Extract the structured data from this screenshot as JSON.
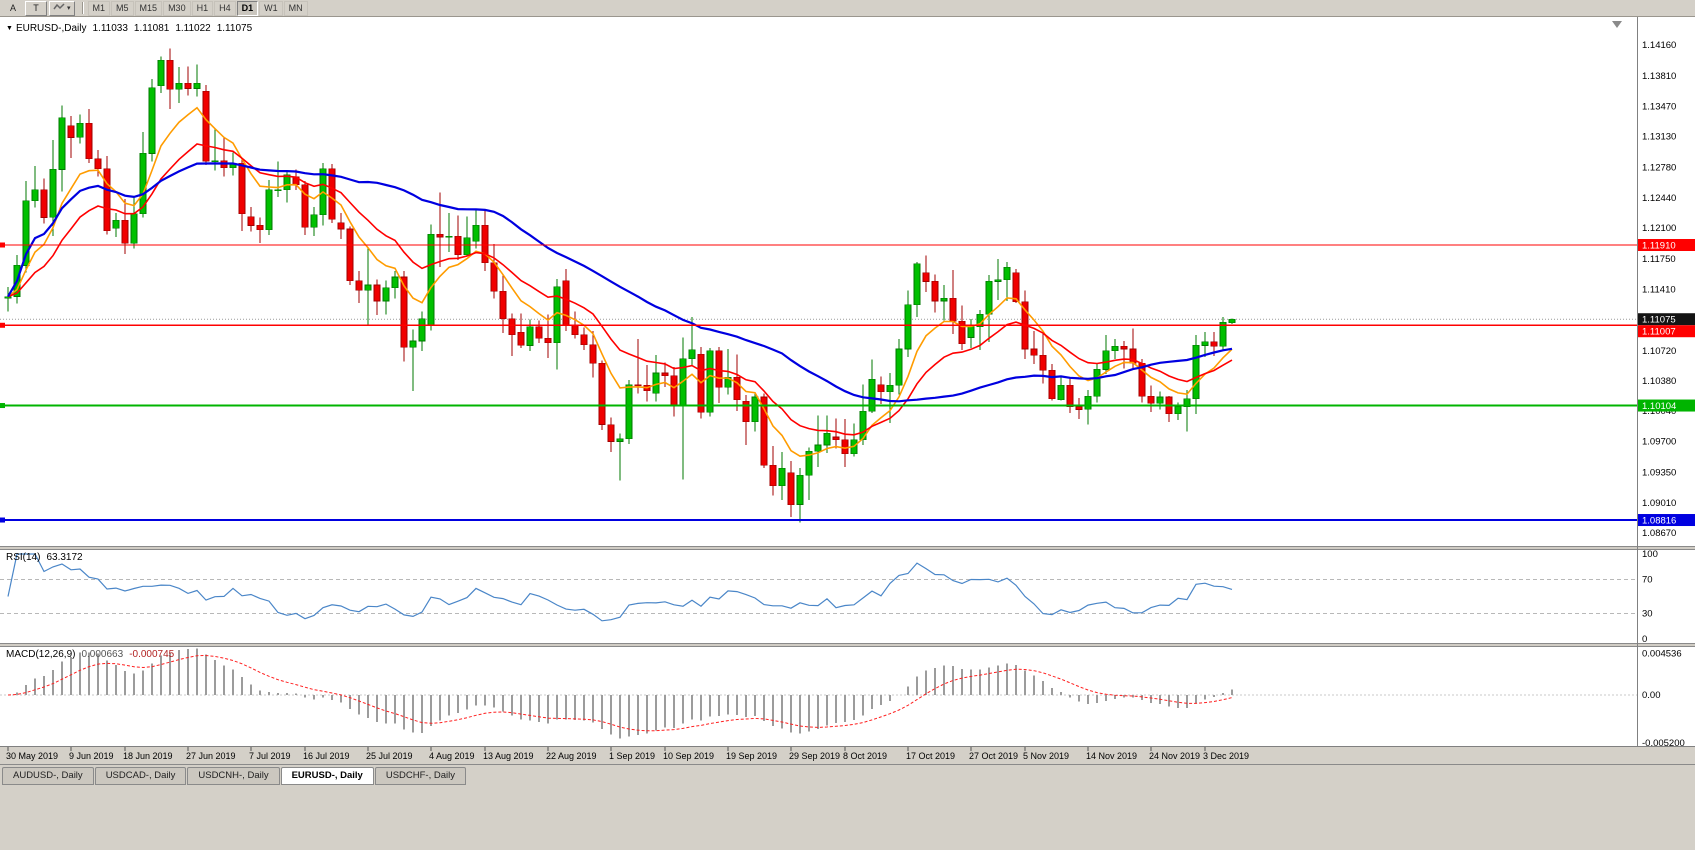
{
  "toolbar": {
    "buttons": [
      {
        "label": "A"
      },
      {
        "label": "T"
      }
    ],
    "timeframes": [
      "M1",
      "M5",
      "M15",
      "M30",
      "H1",
      "H4",
      "D1",
      "W1",
      "MN"
    ],
    "active_timeframe": "D1"
  },
  "chart": {
    "quote": {
      "title": "EURUSD-,Daily",
      "open": "1.11033",
      "high": "1.11081",
      "low": "1.11022",
      "close": "1.11075"
    },
    "price_axis_ticks": [
      "1.14160",
      "1.13810",
      "1.13470",
      "1.13130",
      "1.12780",
      "1.12440",
      "1.12100",
      "1.11750",
      "1.11410",
      "1.10720",
      "1.10380",
      "1.10040",
      "1.09700",
      "1.09350",
      "1.09010",
      "1.08670"
    ],
    "current_price": {
      "label": "1.11075",
      "value": 1.11075,
      "bg": "#141414"
    },
    "levels": [
      {
        "label": "1.11910",
        "value": 1.1191,
        "color": "#ff0000",
        "width": 1.4
      },
      {
        "label": "1.11007",
        "value": 1.11007,
        "color": "#ff0000",
        "width": 1.4
      },
      {
        "label": "1.10104",
        "value": 1.10104,
        "color": "#00b400",
        "width": 2
      },
      {
        "label": "1.08816",
        "value": 1.08816,
        "color": "#0000e0",
        "width": 2.4
      }
    ],
    "time_labels": [
      {
        "text": "30 May 2019",
        "i": 0
      },
      {
        "text": "9 Jun 2019",
        "i": 7
      },
      {
        "text": "18 Jun 2019",
        "i": 13
      },
      {
        "text": "27 Jun 2019",
        "i": 20
      },
      {
        "text": "7 Jul 2019",
        "i": 27
      },
      {
        "text": "16 Jul 2019",
        "i": 33
      },
      {
        "text": "25 Jul 2019",
        "i": 40
      },
      {
        "text": "4 Aug 2019",
        "i": 47
      },
      {
        "text": "13 Aug 2019",
        "i": 53
      },
      {
        "text": "22 Aug 2019",
        "i": 60
      },
      {
        "text": "1 Sep 2019",
        "i": 67
      },
      {
        "text": "10 Sep 2019",
        "i": 73
      },
      {
        "text": "19 Sep 2019",
        "i": 80
      },
      {
        "text": "29 Sep 2019",
        "i": 87
      },
      {
        "text": "8 Oct 2019",
        "i": 93
      },
      {
        "text": "17 Oct 2019",
        "i": 100
      },
      {
        "text": "27 Oct 2019",
        "i": 107
      },
      {
        "text": "5 Nov 2019",
        "i": 113
      },
      {
        "text": "14 Nov 2019",
        "i": 120
      },
      {
        "text": "24 Nov 2019",
        "i": 127
      },
      {
        "text": "3 Dec 2019",
        "i": 133
      }
    ]
  },
  "rsi": {
    "name": "RSI(14)",
    "value": "63.3172",
    "period": 14,
    "color": "#4a86c8",
    "levels": [
      70,
      30
    ],
    "scale": [
      {
        "label": "100",
        "value": 100
      },
      {
        "label": "70",
        "value": 70
      },
      {
        "label": "30",
        "value": 30
      },
      {
        "label": "0",
        "value": 0
      }
    ]
  },
  "macd": {
    "name": "MACD(12,26,9)",
    "value_main": "0.000663",
    "value_signal": "-0.000745",
    "fast": 12,
    "slow": 26,
    "signal": 9,
    "scale": [
      {
        "label": "0.004536",
        "value": 0.004536
      },
      {
        "label": "0.00",
        "value": 0
      },
      {
        "label": "-0.005200",
        "value": -0.0052
      }
    ]
  },
  "tabs": [
    {
      "label": "AUDUSD-, Daily",
      "active": false
    },
    {
      "label": "USDCAD-, Daily",
      "active": false
    },
    {
      "label": "USDCNH-, Daily",
      "active": false
    },
    {
      "label": "EURUSD-, Daily",
      "active": true
    },
    {
      "label": "USDCHF-, Daily",
      "active": false
    }
  ],
  "chart_data": {
    "type": "candlestick",
    "symbol": "EURUSD-",
    "timeframe": "Daily",
    "title": "EURUSD-,Daily",
    "bull_color": "#00c000",
    "bull_border": "#007800",
    "bear_color": "#f00000",
    "bear_border": "#a00000",
    "y_axis_range": [
      1.0867,
      1.1416
    ],
    "ma_overlays": [
      {
        "period": 8,
        "method": "ema",
        "color": "#ff9c00",
        "width": 1.6
      },
      {
        "period": 17,
        "method": "ema",
        "color": "#ff0000",
        "width": 1.6
      },
      {
        "period": 40,
        "method": "sma",
        "color": "#0000e0",
        "width": 2.2
      }
    ],
    "ohlc": [
      [
        1.1131,
        1.1144,
        1.1116,
        1.1133
      ],
      [
        1.1133,
        1.118,
        1.1125,
        1.1168
      ],
      [
        1.1168,
        1.1263,
        1.116,
        1.1241
      ],
      [
        1.1241,
        1.128,
        1.1233,
        1.1253
      ],
      [
        1.1253,
        1.1266,
        1.1215,
        1.1222
      ],
      [
        1.1222,
        1.1309,
        1.1201,
        1.1276
      ],
      [
        1.1276,
        1.1348,
        1.1251,
        1.1334
      ],
      [
        1.1325,
        1.1336,
        1.1289,
        1.1312
      ],
      [
        1.1312,
        1.1338,
        1.1305,
        1.1328
      ],
      [
        1.1328,
        1.1344,
        1.1283,
        1.1288
      ],
      [
        1.1288,
        1.1298,
        1.1268,
        1.1277
      ],
      [
        1.1277,
        1.1291,
        1.1203,
        1.1207
      ],
      [
        1.121,
        1.1227,
        1.12,
        1.1219
      ],
      [
        1.1219,
        1.1243,
        1.1181,
        1.1193
      ],
      [
        1.1193,
        1.1245,
        1.1187,
        1.1226
      ],
      [
        1.1226,
        1.1318,
        1.1222,
        1.1294
      ],
      [
        1.1294,
        1.1378,
        1.1285,
        1.1368
      ],
      [
        1.137,
        1.1403,
        1.1362,
        1.1399
      ],
      [
        1.1399,
        1.1412,
        1.1344,
        1.1366
      ],
      [
        1.1366,
        1.1391,
        1.1351,
        1.1373
      ],
      [
        1.1373,
        1.1392,
        1.1359,
        1.1367
      ],
      [
        1.1367,
        1.1394,
        1.1358,
        1.1373
      ],
      [
        1.1364,
        1.1371,
        1.1281,
        1.1285
      ],
      [
        1.1285,
        1.1322,
        1.1275,
        1.1286
      ],
      [
        1.1286,
        1.1312,
        1.1268,
        1.1278
      ],
      [
        1.1278,
        1.1295,
        1.1269,
        1.1283
      ],
      [
        1.1283,
        1.1288,
        1.1207,
        1.1226
      ],
      [
        1.1223,
        1.1234,
        1.1206,
        1.1213
      ],
      [
        1.1213,
        1.1222,
        1.1193,
        1.1208
      ],
      [
        1.1208,
        1.1264,
        1.1202,
        1.1253
      ],
      [
        1.1253,
        1.1285,
        1.1245,
        1.1253
      ],
      [
        1.1253,
        1.1275,
        1.1239,
        1.127
      ],
      [
        1.1268,
        1.1276,
        1.1253,
        1.1259
      ],
      [
        1.1259,
        1.1263,
        1.1202,
        1.1211
      ],
      [
        1.1211,
        1.1234,
        1.1201,
        1.1225
      ],
      [
        1.1225,
        1.1283,
        1.1213,
        1.1277
      ],
      [
        1.1277,
        1.1282,
        1.1216,
        1.122
      ],
      [
        1.1216,
        1.1227,
        1.1198,
        1.1209
      ],
      [
        1.1209,
        1.1212,
        1.1146,
        1.1151
      ],
      [
        1.1151,
        1.1162,
        1.1126,
        1.114
      ],
      [
        1.114,
        1.1188,
        1.1101,
        1.1146
      ],
      [
        1.1146,
        1.1152,
        1.1112,
        1.1128
      ],
      [
        1.1128,
        1.1151,
        1.1113,
        1.1143
      ],
      [
        1.1143,
        1.1162,
        1.1131,
        1.1155
      ],
      [
        1.1155,
        1.1162,
        1.106,
        1.1076
      ],
      [
        1.1076,
        1.1096,
        1.1027,
        1.1083
      ],
      [
        1.1083,
        1.1116,
        1.1072,
        1.1108
      ],
      [
        1.11,
        1.1214,
        1.1095,
        1.1203
      ],
      [
        1.1203,
        1.125,
        1.1166,
        1.12
      ],
      [
        1.12,
        1.1227,
        1.1183,
        1.1201
      ],
      [
        1.1201,
        1.1224,
        1.1174,
        1.118
      ],
      [
        1.118,
        1.1223,
        1.1178,
        1.1199
      ],
      [
        1.1195,
        1.1231,
        1.1187,
        1.1213
      ],
      [
        1.1213,
        1.123,
        1.1162,
        1.1171
      ],
      [
        1.1171,
        1.1192,
        1.1131,
        1.1139
      ],
      [
        1.1139,
        1.1158,
        1.1092,
        1.1108
      ],
      [
        1.1108,
        1.1114,
        1.1066,
        1.109
      ],
      [
        1.1093,
        1.1114,
        1.1075,
        1.1078
      ],
      [
        1.1078,
        1.1107,
        1.1072,
        1.1099
      ],
      [
        1.1099,
        1.1106,
        1.1081,
        1.1086
      ],
      [
        1.1086,
        1.1113,
        1.1064,
        1.1081
      ],
      [
        1.1081,
        1.1153,
        1.1051,
        1.1144
      ],
      [
        1.1151,
        1.1164,
        1.1094,
        1.1101
      ],
      [
        1.1101,
        1.1116,
        1.1086,
        1.109
      ],
      [
        1.109,
        1.1098,
        1.1073,
        1.1079
      ],
      [
        1.1079,
        1.1094,
        1.1042,
        1.1058
      ],
      [
        1.1058,
        1.1061,
        1.0983,
        1.0989
      ],
      [
        1.0989,
        1.0997,
        1.0958,
        1.097
      ],
      [
        1.097,
        1.0979,
        1.0926,
        1.0973
      ],
      [
        1.0973,
        1.1039,
        1.0967,
        1.1034
      ],
      [
        1.1034,
        1.1085,
        1.1024,
        1.1033
      ],
      [
        1.1033,
        1.1056,
        1.1015,
        1.1027
      ],
      [
        1.1024,
        1.1067,
        1.1015,
        1.1047
      ],
      [
        1.1047,
        1.1059,
        1.1031,
        1.1044
      ],
      [
        1.1044,
        1.1054,
        1.0998,
        1.101
      ],
      [
        1.101,
        1.1087,
        1.0927,
        1.1063
      ],
      [
        1.1063,
        1.111,
        1.1055,
        1.1073
      ],
      [
        1.1068,
        1.1076,
        1.0996,
        1.1003
      ],
      [
        1.1003,
        1.1075,
        1.0998,
        1.1072
      ],
      [
        1.1072,
        1.1076,
        1.1013,
        1.1031
      ],
      [
        1.1031,
        1.1074,
        1.1023,
        1.1042
      ],
      [
        1.1042,
        1.1068,
        1.1004,
        1.1017
      ],
      [
        1.1015,
        1.1022,
        1.0966,
        1.0992
      ],
      [
        1.0992,
        1.1024,
        1.0981,
        1.102
      ],
      [
        1.102,
        1.1024,
        1.094,
        1.0943
      ],
      [
        1.0943,
        1.0965,
        1.0909,
        1.092
      ],
      [
        1.092,
        1.0958,
        1.0904,
        1.094
      ],
      [
        1.0935,
        1.0948,
        1.0885,
        1.0899
      ],
      [
        1.0899,
        1.094,
        1.0879,
        1.0932
      ],
      [
        1.0932,
        1.0963,
        1.0904,
        1.0959
      ],
      [
        1.0959,
        1.0999,
        1.0941,
        1.0966
      ],
      [
        1.0966,
        1.0999,
        1.0957,
        1.0979
      ],
      [
        1.0975,
        1.0996,
        1.0962,
        1.0972
      ],
      [
        1.0972,
        1.0995,
        1.0941,
        1.0956
      ],
      [
        1.0956,
        1.099,
        1.0953,
        1.0972
      ],
      [
        1.0972,
        1.1034,
        1.0966,
        1.1004
      ],
      [
        1.1004,
        1.1062,
        1.1002,
        1.104
      ],
      [
        1.1034,
        1.1043,
        1.1012,
        1.1026
      ],
      [
        1.1026,
        1.1047,
        1.0991,
        1.1033
      ],
      [
        1.1033,
        1.1085,
        1.1023,
        1.1074
      ],
      [
        1.1074,
        1.114,
        1.1065,
        1.1124
      ],
      [
        1.1124,
        1.1172,
        1.111,
        1.117
      ],
      [
        1.116,
        1.1179,
        1.1138,
        1.115
      ],
      [
        1.115,
        1.1158,
        1.1115,
        1.1128
      ],
      [
        1.1128,
        1.1146,
        1.1106,
        1.1131
      ],
      [
        1.1131,
        1.1163,
        1.1091,
        1.1105
      ],
      [
        1.1105,
        1.1123,
        1.1073,
        1.108
      ],
      [
        1.1087,
        1.1108,
        1.1075,
        1.1099
      ],
      [
        1.1099,
        1.1118,
        1.1073,
        1.1113
      ],
      [
        1.1113,
        1.1157,
        1.1082,
        1.115
      ],
      [
        1.115,
        1.1175,
        1.1129,
        1.1152
      ],
      [
        1.1152,
        1.1172,
        1.1128,
        1.1166
      ],
      [
        1.116,
        1.1164,
        1.1126,
        1.1127
      ],
      [
        1.1127,
        1.114,
        1.1063,
        1.1074
      ],
      [
        1.1074,
        1.1094,
        1.1057,
        1.1067
      ],
      [
        1.1067,
        1.1092,
        1.1035,
        1.105
      ],
      [
        1.105,
        1.1057,
        1.1016,
        1.1018
      ],
      [
        1.1017,
        1.1043,
        1.1016,
        1.1033
      ],
      [
        1.1033,
        1.1041,
        1.1002,
        1.1009
      ],
      [
        1.1009,
        1.1019,
        1.0995,
        1.1006
      ],
      [
        1.1006,
        1.1028,
        1.0989,
        1.1021
      ],
      [
        1.1021,
        1.1057,
        1.1014,
        1.1051
      ],
      [
        1.1051,
        1.109,
        1.1046,
        1.1072
      ],
      [
        1.1072,
        1.1085,
        1.1063,
        1.1077
      ],
      [
        1.1077,
        1.1083,
        1.1052,
        1.1074
      ],
      [
        1.1074,
        1.1097,
        1.1052,
        1.1058
      ],
      [
        1.1058,
        1.1063,
        1.1014,
        1.1021
      ],
      [
        1.1021,
        1.1033,
        1.1003,
        1.1013
      ],
      [
        1.1013,
        1.1026,
        1.1006,
        1.102
      ],
      [
        1.102,
        1.1021,
        1.0992,
        1.1001
      ],
      [
        1.1001,
        1.1014,
        1.0994,
        1.1009
      ],
      [
        1.1009,
        1.1028,
        1.0981,
        1.1018
      ],
      [
        1.1018,
        1.109,
        1.1001,
        1.1078
      ],
      [
        1.1078,
        1.1093,
        1.1065,
        1.1082
      ],
      [
        1.1082,
        1.1093,
        1.1066,
        1.1077
      ],
      [
        1.1077,
        1.111,
        1.1072,
        1.1104
      ],
      [
        1.11033,
        1.11081,
        1.11022,
        1.11075
      ]
    ]
  }
}
